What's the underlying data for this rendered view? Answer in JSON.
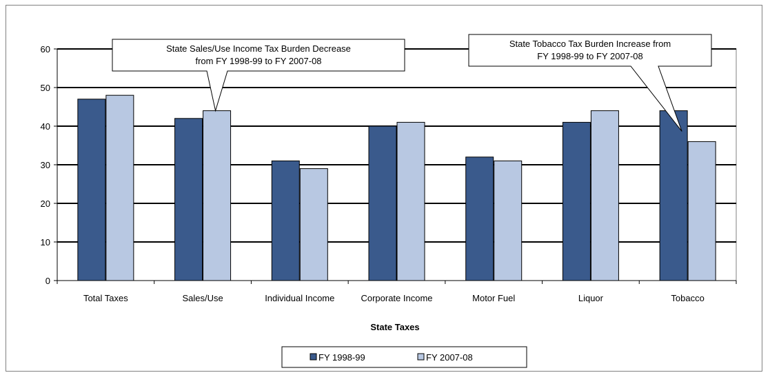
{
  "chart_data": {
    "type": "bar",
    "title": "",
    "xlabel": "State Taxes",
    "ylabel": "",
    "ylim": [
      0,
      60
    ],
    "yticks": [
      0,
      10,
      20,
      30,
      40,
      50,
      60
    ],
    "grid": true,
    "legend_position": "bottom",
    "categories": [
      "Total Taxes",
      "Sales/Use",
      "Individual Income",
      "Corporate Income",
      "Motor Fuel",
      "Liquor",
      "Tobacco"
    ],
    "series": [
      {
        "name": "FY 1998-99",
        "color": "#3a5a8c",
        "values": [
          47,
          42,
          31,
          40,
          32,
          41,
          44
        ]
      },
      {
        "name": "FY 2007-08",
        "color": "#b8c8e2",
        "values": [
          48,
          44,
          29,
          41,
          31,
          44,
          36
        ]
      }
    ],
    "annotations": [
      {
        "lines": [
          "State Sales/Use Income Tax Burden Decrease",
          "from FY 1998-99 to FY 2007-08"
        ],
        "category_index": 1,
        "series_index": 1
      },
      {
        "lines": [
          "State Tobacco Tax Burden Increase from",
          "FY 1998-99 to FY 2007-08"
        ],
        "category_index": 6,
        "series_index": 0
      }
    ]
  }
}
